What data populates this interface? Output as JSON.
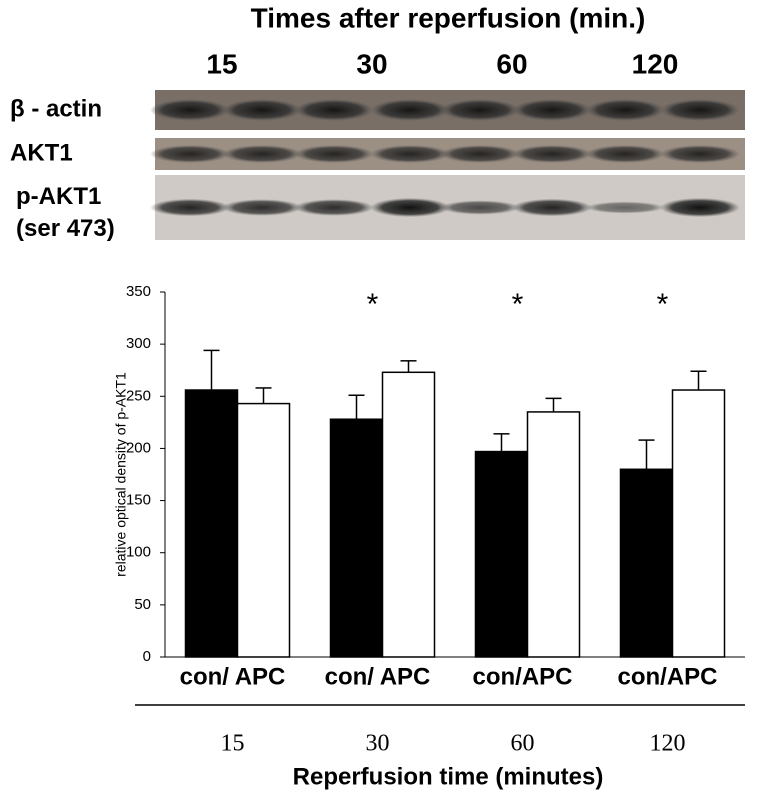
{
  "blot": {
    "title": "Times after reperfusion (min.)",
    "times": [
      "15",
      "30",
      "60",
      "120"
    ],
    "rows": [
      [
        "β - actin"
      ],
      [
        "AKT1"
      ],
      [
        "p-AKT1",
        "(ser 473)"
      ]
    ]
  },
  "chart_data": {
    "type": "bar",
    "ylabel": "relative optical density of p-AKT1",
    "xlabel": "Reperfusion time (minutes)",
    "categories": [
      "con/ APC",
      "con/ APC",
      "con/APC",
      "con/APC"
    ],
    "times": [
      "15",
      "30",
      "60",
      "120"
    ],
    "significance": [
      null,
      "*",
      "*",
      "*"
    ],
    "series": [
      {
        "color": "#000000",
        "values": [
          256,
          228,
          197,
          180
        ],
        "errors": [
          38,
          23,
          17,
          28
        ]
      },
      {
        "color": "#ffffff",
        "values": [
          243,
          273,
          235,
          256
        ],
        "errors": [
          15,
          11,
          13,
          18
        ]
      }
    ],
    "ylim": [
      0,
      350
    ],
    "yticks": [
      0,
      50,
      100,
      150,
      200,
      250,
      300,
      350
    ],
    "grid": false
  }
}
